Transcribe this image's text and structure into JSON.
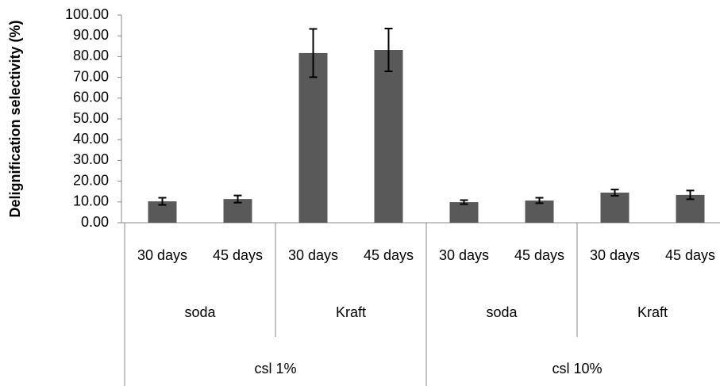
{
  "chart_data": {
    "type": "bar",
    "ylabel": "Delignification selectivity (%)",
    "categories": [
      "30 days",
      "45 days",
      "30 days",
      "45 days",
      "30 days",
      "45 days",
      "30 days",
      "45 days"
    ],
    "groups": [
      "soda",
      "Kraft",
      "soda",
      "Kraft"
    ],
    "supergroups": [
      "csl 1%",
      "csl 10%"
    ],
    "series": [
      {
        "name": "Delignification selectivity",
        "color": "#595959",
        "values": [
          10.3,
          11.4,
          81.7,
          83.2,
          9.9,
          10.7,
          14.5,
          13.4
        ],
        "errors": [
          1.7,
          1.7,
          11.6,
          10.3,
          1.0,
          1.3,
          1.5,
          2.1
        ]
      }
    ],
    "ylim": [
      0,
      100
    ],
    "yticks": [
      {
        "value": 0,
        "label": "0.00"
      },
      {
        "value": 10,
        "label": "10.00"
      },
      {
        "value": 20,
        "label": "20.00"
      },
      {
        "value": 30,
        "label": "30.00"
      },
      {
        "value": 40,
        "label": "40.00"
      },
      {
        "value": 50,
        "label": "50.00"
      },
      {
        "value": 60,
        "label": "60.00"
      },
      {
        "value": 70,
        "label": "70.00"
      },
      {
        "value": 80,
        "label": "80.00"
      },
      {
        "value": 90,
        "label": "90.00"
      },
      {
        "value": 100,
        "label": "100.00"
      }
    ]
  }
}
